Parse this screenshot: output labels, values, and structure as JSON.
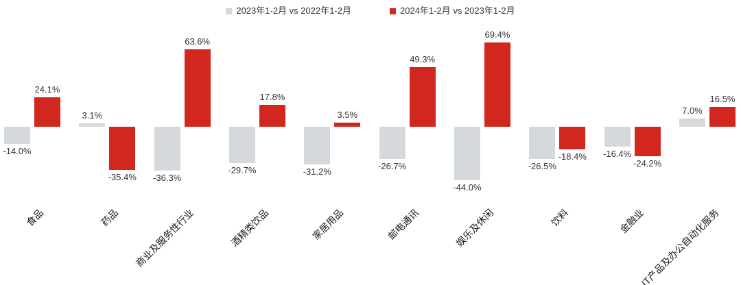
{
  "legend": {
    "items": [
      {
        "label": "2023年1-2月 vs 2022年1-2月",
        "color": "#D5D9DB"
      },
      {
        "label": "2024年1-2月 vs 2023年1-2月",
        "color": "#D2271F"
      }
    ]
  },
  "chart_data": {
    "type": "bar",
    "categories": [
      "食品",
      "药品",
      "商业及服务性行业",
      "酒精类饮品",
      "家居用品",
      "邮电通讯",
      "娱乐及休闲",
      "饮料",
      "金融业",
      "IT产品及办公自动化服务"
    ],
    "series": [
      {
        "name": "2023年1-2月 vs 2022年1-2月",
        "color": "#D5D9DB",
        "values": [
          -14.0,
          3.1,
          -36.3,
          -29.7,
          -31.2,
          -26.7,
          -44.0,
          -26.5,
          -16.4,
          7.0
        ]
      },
      {
        "name": "2024年1-2月 vs 2023年1-2月",
        "color": "#D2271F",
        "values": [
          24.1,
          -35.4,
          63.6,
          17.8,
          3.5,
          49.3,
          69.4,
          -18.4,
          -24.2,
          16.5
        ]
      }
    ],
    "value_label_suffix": "%",
    "value_label_decimals": 1,
    "title": "",
    "xlabel": "",
    "ylabel": "",
    "ylim": [
      -44.0,
      69.4
    ],
    "grid": false,
    "legend_position": "top",
    "x_tick_rotation_deg": 45,
    "background": "#ffffff"
  }
}
